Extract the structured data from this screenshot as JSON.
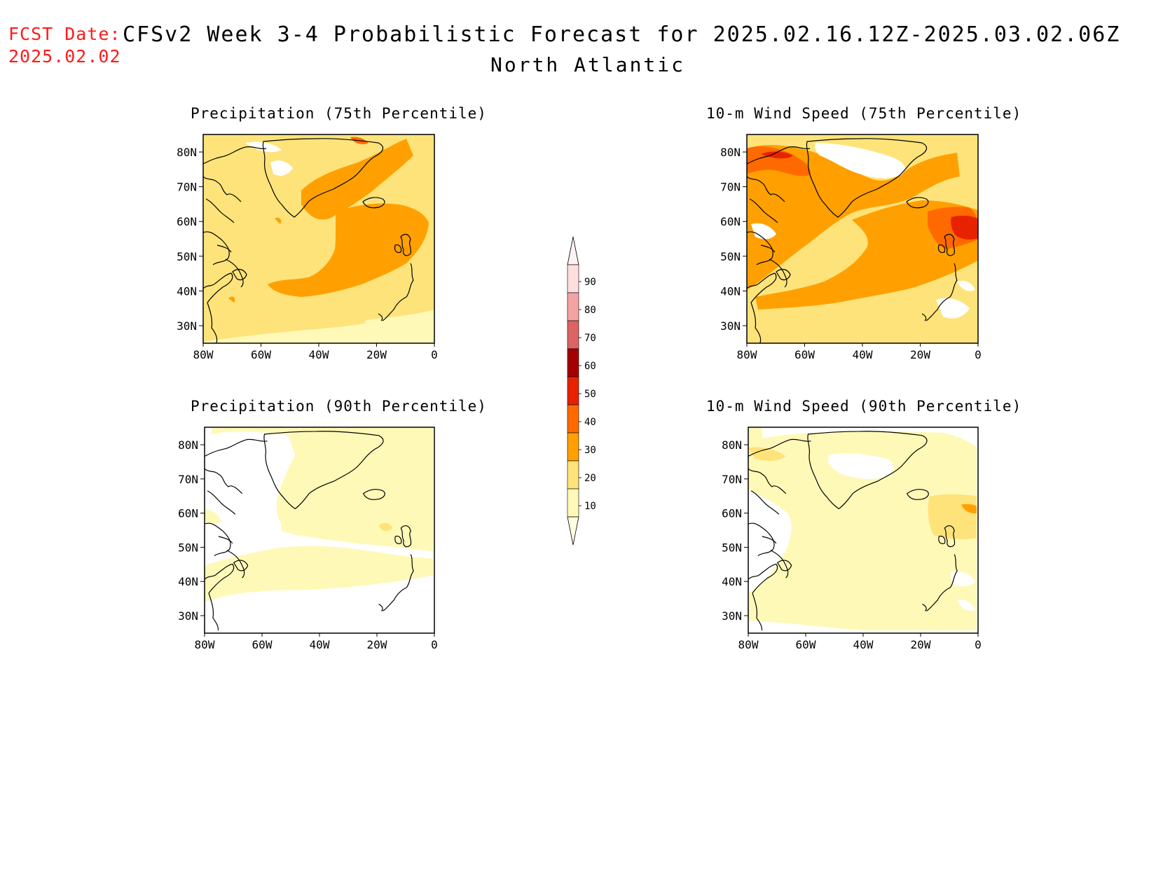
{
  "header": {
    "fcst_label": "FCST Date:",
    "fcst_date": "2025.02.02",
    "title": "CFSv2 Week 3-4 Probabilistic Forecast for 2025.02.16.12Z-2025.03.02.06Z",
    "subtitle": "North Atlantic"
  },
  "axes": {
    "lon_ticks": [
      "80W",
      "60W",
      "40W",
      "20W",
      "0"
    ],
    "lat_ticks": [
      "80N",
      "70N",
      "60N",
      "50N",
      "40N",
      "30N"
    ]
  },
  "panels": [
    {
      "id": "precip-75",
      "title": "Precipitation (75th Percentile)"
    },
    {
      "id": "wind-75",
      "title": "10-m Wind Speed (75th Percentile)"
    },
    {
      "id": "precip-90",
      "title": "Precipitation (90th Percentile)"
    },
    {
      "id": "wind-90",
      "title": "10-m Wind Speed (90th Percentile)"
    }
  ],
  "colorbar": {
    "labels": [
      "90",
      "80",
      "70",
      "60",
      "50",
      "40",
      "30",
      "20",
      "10"
    ],
    "colors": [
      "#ffdede",
      "#f4a3a3",
      "#dd6464",
      "#a50000",
      "#e62200",
      "#ff6a00",
      "#ffa000",
      "#fde37a",
      "#fff9b8"
    ]
  },
  "palette": {
    "fill_light": "#fff9b8",
    "fill_medium": "#fde37a",
    "fill_orange": "#ffa000",
    "fill_dark": "#ff6a00",
    "fill_red": "#e62200",
    "fcst_color": "#ff1a1a"
  }
}
